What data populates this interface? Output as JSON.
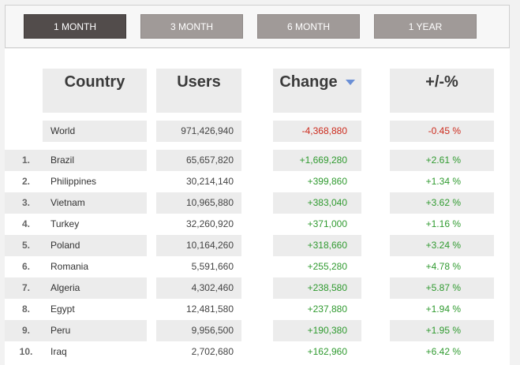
{
  "tabs": [
    "1 MONTH",
    "3 MONTH",
    "6 MONTH",
    "1 YEAR"
  ],
  "headers": {
    "country": "Country",
    "users": "Users",
    "change": "Change",
    "pct": "+/-%"
  },
  "world": {
    "country": "World",
    "users": "971,426,940",
    "change": "-4,368,880",
    "pct": "-0.45 %"
  },
  "rows": [
    {
      "rank": "1.",
      "country": "Brazil",
      "users": "65,657,820",
      "change": "+1,669,280",
      "pct": "+2.61 %"
    },
    {
      "rank": "2.",
      "country": "Philippines",
      "users": "30,214,140",
      "change": "+399,860",
      "pct": "+1.34 %"
    },
    {
      "rank": "3.",
      "country": "Vietnam",
      "users": "10,965,880",
      "change": "+383,040",
      "pct": "+3.62 %"
    },
    {
      "rank": "4.",
      "country": "Turkey",
      "users": "32,260,920",
      "change": "+371,000",
      "pct": "+1.16 %"
    },
    {
      "rank": "5.",
      "country": "Poland",
      "users": "10,164,260",
      "change": "+318,660",
      "pct": "+3.24 %"
    },
    {
      "rank": "6.",
      "country": "Romania",
      "users": "5,591,660",
      "change": "+255,280",
      "pct": "+4.78 %"
    },
    {
      "rank": "7.",
      "country": "Algeria",
      "users": "4,302,460",
      "change": "+238,580",
      "pct": "+5.87 %"
    },
    {
      "rank": "8.",
      "country": "Egypt",
      "users": "12,481,580",
      "change": "+237,880",
      "pct": "+1.94 %"
    },
    {
      "rank": "9.",
      "country": "Peru",
      "users": "9,956,500",
      "change": "+190,380",
      "pct": "+1.95 %"
    },
    {
      "rank": "10.",
      "country": "Iraq",
      "users": "2,702,680",
      "change": "+162,960",
      "pct": "+6.42 %"
    }
  ],
  "colors": {
    "positive": "#2f9a2f",
    "negative": "#cc2b1d",
    "active_tab": "#524c4b",
    "tab": "#a09a98"
  }
}
